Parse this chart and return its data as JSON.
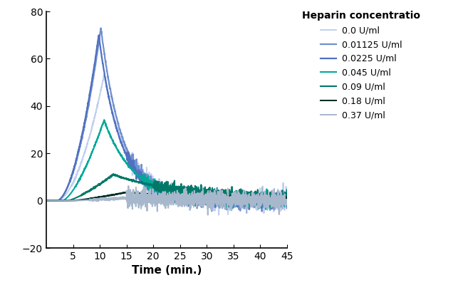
{
  "title": "Heparin concentratio",
  "xlabel": "Time (min.)",
  "xlim": [
    0,
    45
  ],
  "ylim": [
    -20,
    80
  ],
  "yticks": [
    -20,
    0,
    20,
    40,
    60,
    80
  ],
  "xticks": [
    5,
    10,
    15,
    20,
    25,
    30,
    35,
    40,
    45
  ],
  "series": [
    {
      "label": "0.0 U/ml",
      "color": "#c0d0ee",
      "peak_time": 10.8,
      "peak_val": 53,
      "rise_start": 2.0,
      "rise_exp": 1.8,
      "fall_tau": 4.5,
      "noise_amp": 2.0,
      "noise_start": 16,
      "linewidth": 1.4
    },
    {
      "label": "0.01125 U/ml",
      "color": "#7090d0",
      "peak_time": 10.2,
      "peak_val": 73,
      "rise_start": 2.0,
      "rise_exp": 1.8,
      "fall_tau": 4.0,
      "noise_amp": 1.5,
      "noise_start": 16,
      "linewidth": 1.6
    },
    {
      "label": "0.0225 U/ml",
      "color": "#5070c0",
      "peak_time": 9.8,
      "peak_val": 70,
      "rise_start": 2.0,
      "rise_exp": 1.8,
      "fall_tau": 4.0,
      "noise_amp": 1.2,
      "noise_start": 15,
      "linewidth": 1.6
    },
    {
      "label": "0.045 U/ml",
      "color": "#00a898",
      "peak_time": 10.8,
      "peak_val": 34,
      "rise_start": 3.0,
      "rise_exp": 1.5,
      "fall_tau": 5.5,
      "noise_amp": 1.4,
      "noise_start": 18,
      "linewidth": 1.5
    },
    {
      "label": "0.09 U/ml",
      "color": "#007868",
      "peak_time": 12.5,
      "peak_val": 11,
      "rise_start": 4.0,
      "rise_exp": 1.3,
      "fall_tau": 14.0,
      "noise_amp": 1.2,
      "noise_start": 20,
      "linewidth": 1.5
    },
    {
      "label": "0.18 U/ml",
      "color": "#003028",
      "peak_time": 15.0,
      "peak_val": 3.5,
      "rise_start": 5.0,
      "rise_exp": 1.2,
      "fall_tau": 20.0,
      "noise_amp": 0.5,
      "noise_start": 28,
      "linewidth": 1.5
    },
    {
      "label": "0.37 U/ml",
      "color": "#a8b8cc",
      "peak_time": 14.0,
      "peak_val": 1.0,
      "rise_start": 5.5,
      "rise_exp": 1.2,
      "fall_tau": 30.0,
      "noise_amp": 1.8,
      "noise_start": 15,
      "linewidth": 1.4
    }
  ],
  "background_color": "#ffffff",
  "legend_title_fontsize": 10,
  "legend_fontsize": 9,
  "axis_fontsize": 11,
  "tick_fontsize": 10
}
